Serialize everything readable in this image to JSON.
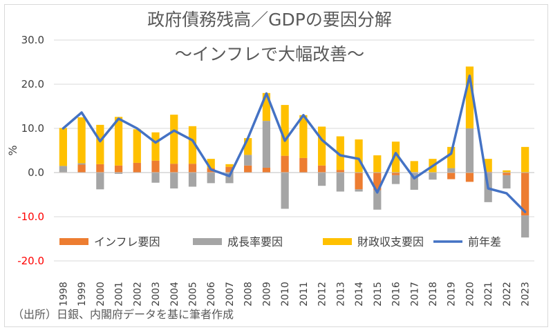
{
  "chart_data": {
    "type": "bar",
    "title": "政府債務残高／GDPの要因分解",
    "subtitle": "～インフレで大幅改善～",
    "ylabel": "%",
    "xlabel": "",
    "ylim": [
      -20,
      30
    ],
    "yticks": [
      "30.0",
      "20.0",
      "10.0",
      "0.0",
      "-10.0",
      "-20.0"
    ],
    "ytick_values": [
      30,
      20,
      10,
      0,
      -10,
      -20
    ],
    "categories": [
      "1998",
      "1999",
      "2000",
      "2001",
      "2002",
      "2003",
      "2004",
      "2005",
      "2006",
      "2007",
      "2008",
      "2009",
      "2010",
      "2011",
      "2012",
      "2013",
      "2014",
      "2015",
      "2016",
      "2017",
      "2018",
      "2019",
      "2020",
      "2021",
      "2022",
      "2023"
    ],
    "series": [
      {
        "name": "インフレ要因",
        "kind": "stacked-bar",
        "color": "#ed7d31",
        "values": [
          0.1,
          1.8,
          1.9,
          1.6,
          2.2,
          2.7,
          2.0,
          2.0,
          1.0,
          1.3,
          1.6,
          1.1,
          3.8,
          3.3,
          1.6,
          0.6,
          -3.8,
          -4.0,
          -0.6,
          0.1,
          0.0,
          -1.5,
          -2.1,
          0.2,
          -0.6,
          -9.7
        ]
      },
      {
        "name": "成長率要因",
        "kind": "stacked-bar",
        "color": "#a5a5a5",
        "values": [
          1.4,
          0.3,
          -3.8,
          -0.3,
          0.0,
          -2.3,
          -3.6,
          -3.2,
          -2.4,
          -2.4,
          2.4,
          10.6,
          -8.2,
          0.0,
          -3.0,
          -4.3,
          -0.5,
          -4.4,
          -2.0,
          -3.9,
          -1.6,
          1.0,
          10.0,
          -6.7,
          -3.0,
          -5.0
        ]
      },
      {
        "name": "財政収支要因",
        "kind": "stacked-bar",
        "color": "#ffc000",
        "values": [
          8.6,
          10.4,
          8.9,
          11.0,
          7.6,
          6.4,
          11.1,
          8.5,
          2.1,
          0.6,
          3.8,
          6.3,
          11.5,
          9.7,
          8.8,
          7.6,
          7.5,
          3.9,
          7.0,
          2.5,
          3.1,
          4.8,
          14.0,
          2.9,
          0.5,
          5.8
        ]
      },
      {
        "name": "前年差",
        "kind": "line",
        "color": "#4472c4",
        "values": [
          10.0,
          13.6,
          7.1,
          12.2,
          10.0,
          6.8,
          9.5,
          7.3,
          0.7,
          -0.8,
          7.8,
          17.9,
          7.2,
          13.0,
          7.4,
          3.9,
          3.1,
          -4.5,
          4.4,
          -1.3,
          1.5,
          4.3,
          21.9,
          -3.6,
          -4.7,
          -8.9
        ]
      }
    ],
    "legend_position": "bottom",
    "grid": true
  },
  "source_note": "（出所）日銀、内閣府データを基に筆者作成"
}
